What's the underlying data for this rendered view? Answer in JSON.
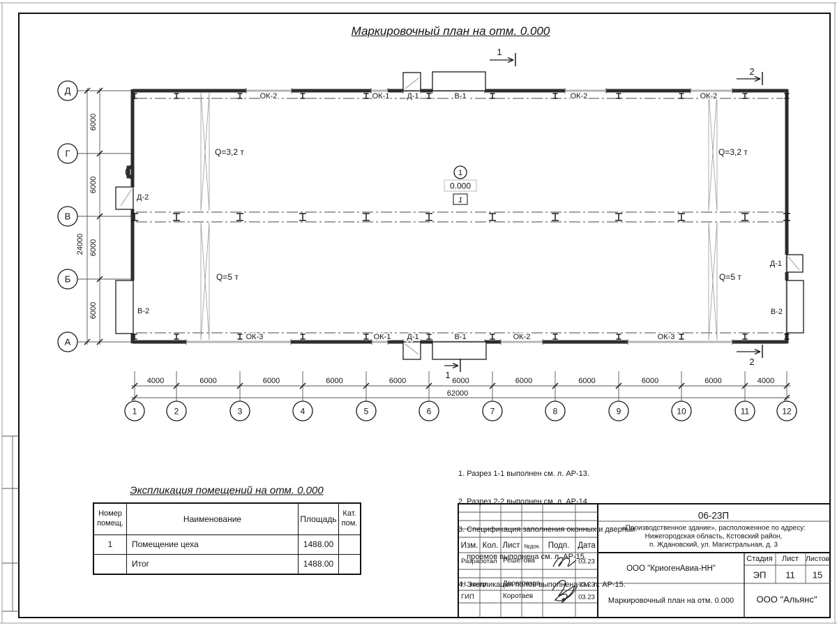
{
  "title": "Маркировочный план на отм. 0.000",
  "plan": {
    "row_axes": [
      "Д",
      "Г",
      "В",
      "Б",
      "А"
    ],
    "col_axes": [
      "1",
      "2",
      "3",
      "4",
      "5",
      "6",
      "7",
      "8",
      "9",
      "10",
      "11",
      "12"
    ],
    "v_dims": [
      "6000",
      "6000",
      "6000",
      "6000"
    ],
    "v_total": "24000",
    "h_dims": [
      "4000",
      "6000",
      "6000",
      "6000",
      "6000",
      "6000",
      "6000",
      "6000",
      "6000",
      "6000",
      "4000"
    ],
    "h_total": "62000",
    "top_wall_labels": [
      "ОК-2",
      "ОК-1",
      "Д-1",
      "В-1",
      "ОК-2",
      "ОК-2"
    ],
    "bottom_wall_labels": [
      "ОК-3",
      "ОК-1",
      "Д-1",
      "В-1",
      "ОК-2",
      "ОК-3"
    ],
    "left_wall_labels": [
      "Д-2",
      "В-2"
    ],
    "right_wall_labels": [
      "Д-1",
      "В-2"
    ],
    "crane_labels": [
      "Q=3,2 т",
      "Q=5 т",
      "Q=3,2 т",
      "Q=5 т"
    ],
    "room_number": "1",
    "elevation": "0.000",
    "floor_mark": "1",
    "section_mark_1": "1",
    "section_mark_2": "2"
  },
  "explication": {
    "title": "Экспликация помещений на отм. 0.000",
    "headers": [
      "Номер помещ.",
      "Наименование",
      "Площадь",
      "Кат. пом."
    ],
    "rows": [
      {
        "num": "1",
        "name": "Помещение цеха",
        "area": "1488.00",
        "cat": ""
      },
      {
        "num": "",
        "name": "Итог",
        "area": "1488.00",
        "cat": ""
      }
    ]
  },
  "notes": [
    "1. Разрез 1-1 выполнен см. л. АР-13.",
    "2. Разрез 2-2 выполнен см. л. АР-14.",
    "3. Спецификация заполнения оконных и дверных",
    "    проемов выполнена см. л. АР-15.",
    "4. Экспликация полов выполнена см. л. АР-15."
  ],
  "titleblock": {
    "doc_number": "06-23П",
    "address_line1": "«Производственное здание», расположенное по адресу:",
    "address_line2": "Нижегородская область, Кстовский район,",
    "address_line3": "п. Ждановский, ул. Магистральная, д. 3",
    "col_izm": "Изм.",
    "col_kol": "Кол.",
    "col_list": "Лист",
    "col_ndok": "№док.",
    "col_podp": "Подп.",
    "col_data": "Дата",
    "row1_role": "Разработал",
    "row1_name": "Решетова",
    "row1_date": "03.23",
    "row2_role": "Н. контр.",
    "row2_name": "Двоеглазов",
    "row2_date": "03.23",
    "row3_role": "ГИП",
    "row3_name": "Коротаев",
    "row3_date": "03.23",
    "org": "ООО \"КриогенАвиа-НН\"",
    "stage_label": "Стадия",
    "list_label": "Лист",
    "listov_label": "Листов",
    "stage": "ЭП",
    "list": "11",
    "listov": "15",
    "drawing_name": "Маркировочный план на отм. 0.000",
    "company": "ООО \"Альянс\""
  }
}
